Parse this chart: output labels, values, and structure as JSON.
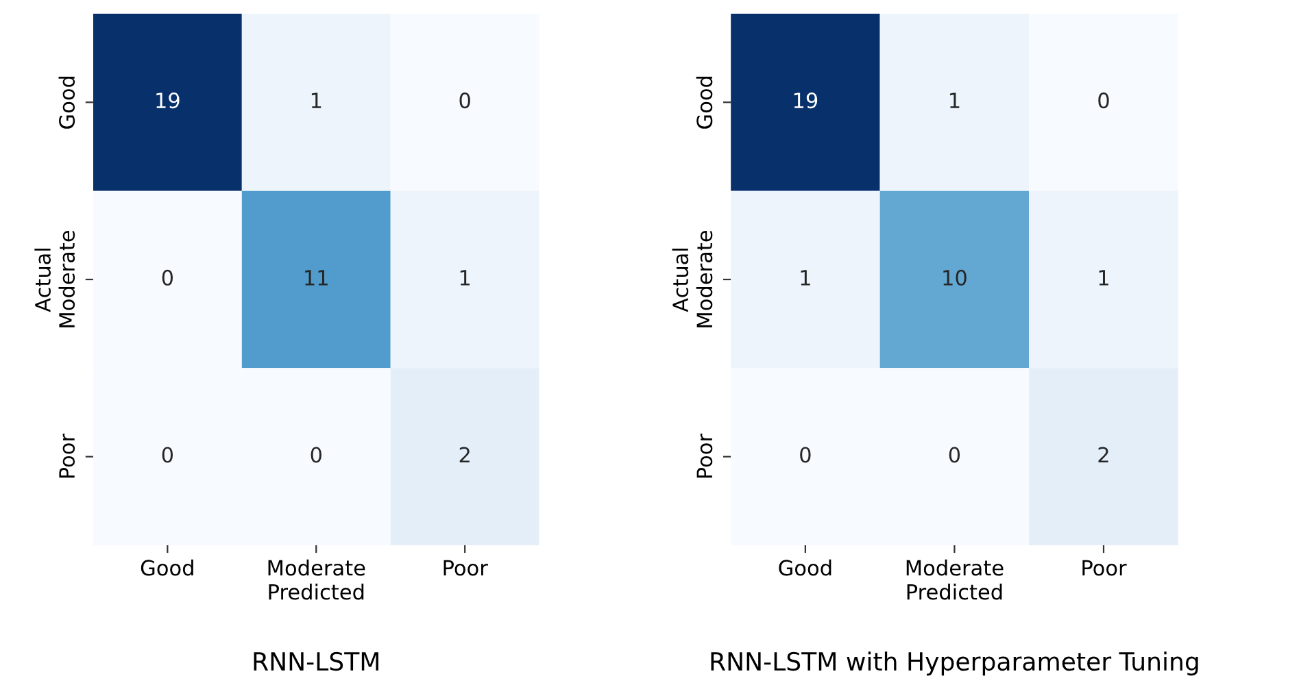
{
  "chart_data": [
    {
      "type": "heatmap",
      "title": "RNN-LSTM",
      "xlabel": "Predicted",
      "ylabel": "Actual",
      "categories": [
        "Good",
        "Moderate",
        "Poor"
      ],
      "y_categories": [
        "Good",
        "Moderate",
        "Poor"
      ],
      "cells": [
        [
          19,
          1,
          0
        ],
        [
          0,
          11,
          1
        ],
        [
          0,
          0,
          2
        ]
      ],
      "data_labels": true
    },
    {
      "type": "heatmap",
      "title": "RNN-LSTM with Hyperparameter Tuning",
      "xlabel": "Predicted",
      "ylabel": "Actual",
      "categories": [
        "Good",
        "Moderate",
        "Poor"
      ],
      "y_categories": [
        "Good",
        "Moderate",
        "Poor"
      ],
      "cells": [
        [
          19,
          1,
          0
        ],
        [
          1,
          10,
          1
        ],
        [
          0,
          0,
          2
        ]
      ],
      "data_labels": true
    }
  ]
}
